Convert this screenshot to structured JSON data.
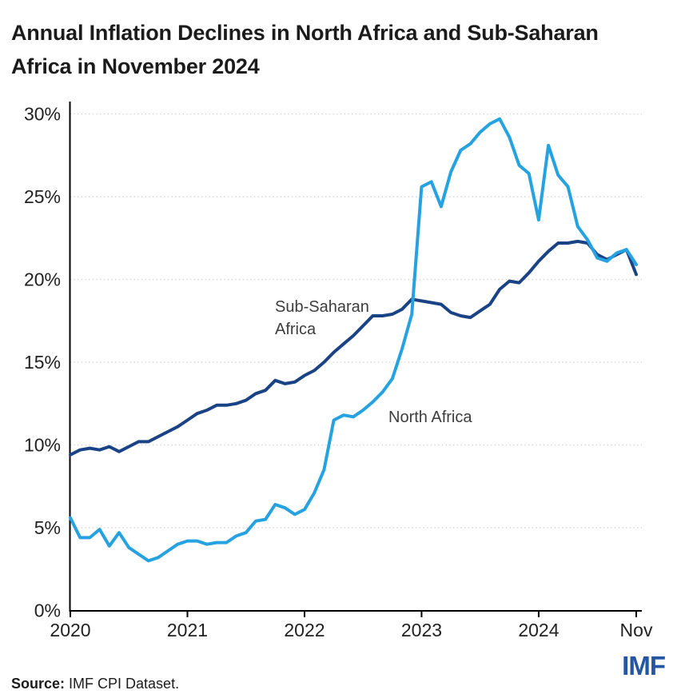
{
  "header": {
    "title_line1": "Annual Inflation Declines in North Africa and Sub-Saharan",
    "title_line2": "Africa in November 2024"
  },
  "chart_data": {
    "type": "line",
    "title": "Annual Inflation Declines in North Africa and Sub-Saharan Africa in November 2024",
    "x_start": "2020-01",
    "x_end": "2024-11",
    "frequency": "monthly",
    "unit": "percent, year-over-year CPI inflation",
    "ylim": [
      0,
      30
    ],
    "grid": "horizontal dotted lines every 5%",
    "legend_position": "inline labels next to lines",
    "xticks": [
      {
        "label": "2020",
        "month_index": 0
      },
      {
        "label": "2021",
        "month_index": 12
      },
      {
        "label": "2022",
        "month_index": 24
      },
      {
        "label": "2023",
        "month_index": 36
      },
      {
        "label": "2024",
        "month_index": 48
      },
      {
        "label": "Nov",
        "month_index": 58
      }
    ],
    "yticks": [
      {
        "label": "0%",
        "value": 0
      },
      {
        "label": "5%",
        "value": 5
      },
      {
        "label": "10%",
        "value": 10
      },
      {
        "label": "15%",
        "value": 15
      },
      {
        "label": "20%",
        "value": 20
      },
      {
        "label": "25%",
        "value": 25
      },
      {
        "label": "30%",
        "value": 30
      }
    ],
    "series": [
      {
        "name": "Sub-Saharan Africa",
        "label_lines": [
          "Sub-Saharan",
          "Africa"
        ],
        "color": "#1A4385",
        "values": [
          9.4,
          9.7,
          9.8,
          9.7,
          9.9,
          9.6,
          9.9,
          10.2,
          10.2,
          10.5,
          10.8,
          11.1,
          11.5,
          11.9,
          12.1,
          12.4,
          12.4,
          12.5,
          12.7,
          13.1,
          13.3,
          13.9,
          13.7,
          13.8,
          14.2,
          14.5,
          15.0,
          15.6,
          16.1,
          16.6,
          17.2,
          17.8,
          17.8,
          17.9,
          18.2,
          18.8,
          18.7,
          18.6,
          18.5,
          18.0,
          17.8,
          17.7,
          18.1,
          18.5,
          19.4,
          19.9,
          19.8,
          20.4,
          21.1,
          21.7,
          22.2,
          22.2,
          22.3,
          22.2,
          21.5,
          21.2,
          21.5,
          21.8,
          20.3
        ]
      },
      {
        "name": "North Africa",
        "label_lines": [
          "North Africa"
        ],
        "color": "#25A2DF",
        "values": [
          5.6,
          4.4,
          4.4,
          4.9,
          3.9,
          4.7,
          3.8,
          3.4,
          3.0,
          3.2,
          3.6,
          4.0,
          4.2,
          4.2,
          4.0,
          4.1,
          4.1,
          4.5,
          4.7,
          5.4,
          5.5,
          6.4,
          6.2,
          5.8,
          6.1,
          7.1,
          8.5,
          11.5,
          11.8,
          11.7,
          12.1,
          12.6,
          13.2,
          14.0,
          15.8,
          17.9,
          25.6,
          25.9,
          24.4,
          26.5,
          27.8,
          28.2,
          28.9,
          29.4,
          29.7,
          28.6,
          26.9,
          26.4,
          23.6,
          28.1,
          26.3,
          25.6,
          23.2,
          22.4,
          21.3,
          21.1,
          21.6,
          21.8,
          20.9
        ]
      }
    ]
  },
  "footer": {
    "source_label": "Source:",
    "source_text": " IMF CPI Dataset.",
    "logo": "IMF"
  }
}
